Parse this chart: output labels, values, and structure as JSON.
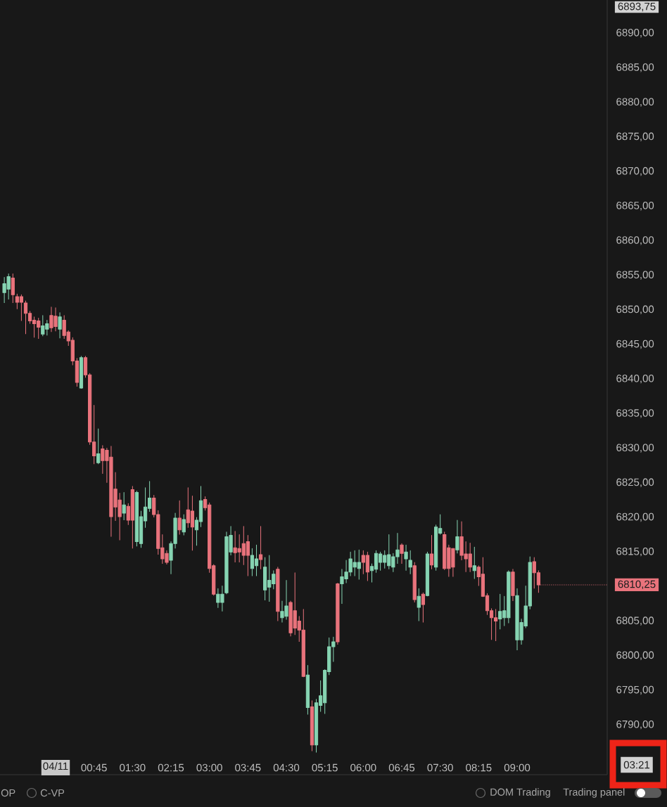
{
  "chart_data": {
    "type": "candlestick",
    "x": [
      -1,
      -0.917,
      -0.833,
      -0.75,
      -0.667,
      -0.583,
      -0.5,
      -0.417,
      -0.333,
      -0.25,
      -0.167,
      -0.083,
      0,
      0.083,
      0.167,
      0.25,
      0.333,
      0.417,
      0.5,
      0.583,
      0.667,
      0.75,
      0.833,
      0.917,
      1,
      1.083,
      1.167,
      1.25,
      1.333,
      1.417,
      1.5,
      1.583,
      1.667,
      1.75,
      1.833,
      1.917,
      2,
      2.083,
      2.167,
      2.25,
      2.333,
      2.417,
      2.5,
      2.583,
      2.667,
      2.75,
      2.833,
      2.917,
      3,
      3.083,
      3.167,
      3.25,
      3.333,
      3.417,
      3.5,
      3.583,
      3.667,
      3.75,
      3.833,
      3.917,
      4,
      4.083,
      4.167,
      4.25,
      4.333,
      4.417,
      4.5,
      4.583,
      4.667,
      4.75,
      4.833,
      4.917,
      5,
      5.083,
      5.167,
      5.25,
      5.333,
      5.417,
      5.5,
      5.583,
      5.667,
      5.75,
      5.833,
      5.917,
      6,
      6.083,
      6.167,
      6.25,
      6.333,
      6.417,
      6.5,
      6.583,
      6.667,
      6.75,
      6.833,
      6.917,
      7,
      7.083,
      7.167,
      7.25,
      7.333,
      7.417,
      7.5,
      7.583,
      7.667,
      7.75,
      7.833,
      7.917,
      8,
      8.083,
      8.167,
      8.25,
      8.333,
      8.417,
      8.5,
      8.583,
      8.667,
      8.75,
      8.833,
      8.917,
      9,
      9.083,
      9.167,
      9.25,
      9.333,
      9.417
    ],
    "ohlc": [
      [
        6852.5,
        6854.7,
        6851.0,
        6853.8
      ],
      [
        6853.0,
        6855.2,
        6851.5,
        6854.8
      ],
      [
        6854.6,
        6855.2,
        6851.0,
        6852.2
      ],
      [
        6851.9,
        6852.3,
        6850.1,
        6851.1
      ],
      [
        6851.9,
        6852.2,
        6848.4,
        6851.1
      ],
      [
        6851.0,
        6851.3,
        6846.5,
        6849.5
      ],
      [
        6849.5,
        6849.8,
        6848.0,
        6848.4
      ],
      [
        6848.5,
        6849.0,
        6846.0,
        6848.0
      ],
      [
        6848.4,
        6848.8,
        6845.8,
        6847.5
      ],
      [
        6846.5,
        6849.2,
        6846.2,
        6847.7
      ],
      [
        6847.2,
        6848.5,
        6846.3,
        6848.0
      ],
      [
        6849.2,
        6850.4,
        6846.8,
        6847.4
      ],
      [
        6849.1,
        6850.3,
        6846.9,
        6847.6
      ],
      [
        6847.2,
        6849.6,
        6845.9,
        6849.0
      ],
      [
        6848.5,
        6849.2,
        6845.8,
        6846.3
      ],
      [
        6846.8,
        6847.0,
        6844.8,
        6845.5
      ],
      [
        6845.6,
        6846.0,
        6842.0,
        6842.6
      ],
      [
        6842.6,
        6843.0,
        6838.9,
        6839.5
      ],
      [
        6838.7,
        6843.3,
        6838.6,
        6843.1
      ],
      [
        6843.1,
        6843.3,
        6840.2,
        6840.6
      ],
      [
        6840.6,
        6840.8,
        6830.5,
        6830.9
      ],
      [
        6830.9,
        6836.2,
        6827.7,
        6828.9
      ],
      [
        6827.9,
        6832.8,
        6827.7,
        6829.2
      ],
      [
        6829.9,
        6830.4,
        6826.3,
        6828.2
      ],
      [
        6829.7,
        6830.0,
        6825.0,
        6828.2
      ],
      [
        6828.7,
        6830.3,
        6817.2,
        6820.1
      ],
      [
        6824.1,
        6826.5,
        6819.5,
        6821.5
      ],
      [
        6822.5,
        6823.5,
        6816.7,
        6820.1
      ],
      [
        6820.6,
        6823.6,
        6819.6,
        6821.8
      ],
      [
        6821.6,
        6822.0,
        6818.9,
        6819.6
      ],
      [
        6824.0,
        6824.5,
        6815.5,
        6819.6
      ],
      [
        6816.5,
        6823.8,
        6815.8,
        6823.6
      ],
      [
        6816.2,
        6820.9,
        6815.6,
        6820.1
      ],
      [
        6819.5,
        6824.3,
        6818.5,
        6821.5
      ],
      [
        6821.3,
        6825.2,
        6820.8,
        6822.8
      ],
      [
        6822.8,
        6823.2,
        6820.0,
        6820.4
      ],
      [
        6820.4,
        6821.0,
        6814.6,
        6815.5
      ],
      [
        6815.6,
        6817.5,
        6813.3,
        6814.0
      ],
      [
        6814.8,
        6815.2,
        6813.2,
        6813.5
      ],
      [
        6813.8,
        6816.5,
        6811.8,
        6816.2
      ],
      [
        6816.2,
        6820.6,
        6815.5,
        6819.9
      ],
      [
        6819.9,
        6822.4,
        6817.5,
        6818.2
      ],
      [
        6817.9,
        6820.4,
        6817.4,
        6819.7
      ],
      [
        6821.1,
        6824.3,
        6818.5,
        6819.2
      ],
      [
        6820.9,
        6823.1,
        6815.2,
        6818.6
      ],
      [
        6818.2,
        6820.0,
        6815.9,
        6819.6
      ],
      [
        6819.4,
        6824.5,
        6818.6,
        6822.4
      ],
      [
        6822.6,
        6823.0,
        6821.0,
        6821.4
      ],
      [
        6821.8,
        6822.1,
        6812.0,
        6812.6
      ],
      [
        6813.0,
        6813.2,
        6808.7,
        6808.9
      ],
      [
        6807.7,
        6809.7,
        6806.9,
        6808.9
      ],
      [
        6807.7,
        6810.1,
        6806.4,
        6808.9
      ],
      [
        6809.1,
        6817.9,
        6808.9,
        6817.2
      ],
      [
        6815.0,
        6818.7,
        6814.5,
        6817.4
      ],
      [
        6815.6,
        6818.0,
        6813.5,
        6814.9
      ],
      [
        6815.5,
        6817.5,
        6813.5,
        6815.0
      ],
      [
        6816.2,
        6818.7,
        6813.1,
        6814.5
      ],
      [
        6816.5,
        6817.4,
        6811.5,
        6814.5
      ],
      [
        6812.6,
        6815.5,
        6811.5,
        6814.5
      ],
      [
        6813.0,
        6816.0,
        6811.5,
        6814.0
      ],
      [
        6814.6,
        6818.7,
        6812.5,
        6813.9
      ],
      [
        6809.5,
        6814.2,
        6808.0,
        6812.8
      ],
      [
        6809.9,
        6814.5,
        6807.8,
        6810.9
      ],
      [
        6810.4,
        6812.3,
        6809.6,
        6811.8
      ],
      [
        6812.5,
        6812.8,
        6805.0,
        6806.4
      ],
      [
        6805.5,
        6807.9,
        6804.8,
        6806.4
      ],
      [
        6805.7,
        6810.9,
        6805.2,
        6807.2
      ],
      [
        6807.7,
        6807.9,
        6802.8,
        6803.3
      ],
      [
        6806.5,
        6812.0,
        6803.0,
        6804.0
      ],
      [
        6805.0,
        6805.7,
        6802.0,
        6803.7
      ],
      [
        6803.7,
        6806.7,
        6796.9,
        6797.0
      ],
      [
        6792.5,
        6798.6,
        6791.5,
        6797.2
      ],
      [
        6792.6,
        6793.5,
        6786.2,
        6787.1
      ],
      [
        6787.1,
        6793.7,
        6786.0,
        6793.2
      ],
      [
        6792.8,
        6796.4,
        6791.9,
        6794.2
      ],
      [
        6793.2,
        6798.0,
        6791.6,
        6797.9
      ],
      [
        6797.7,
        6802.6,
        6797.2,
        6801.3
      ],
      [
        6801.3,
        6802.7,
        6799.1,
        6802.0
      ],
      [
        6810.4,
        6810.5,
        6801.6,
        6802.0
      ],
      [
        6810.4,
        6812.5,
        6807.5,
        6811.4
      ],
      [
        6811.1,
        6813.8,
        6810.5,
        6812.1
      ],
      [
        6812.1,
        6815.0,
        6811.5,
        6814.0
      ],
      [
        6812.8,
        6815.2,
        6811.5,
        6813.5
      ],
      [
        6812.6,
        6815.3,
        6811.0,
        6813.5
      ],
      [
        6814.5,
        6815.2,
        6811.8,
        6813.5
      ],
      [
        6814.5,
        6815.0,
        6810.8,
        6812.1
      ],
      [
        6812.3,
        6813.3,
        6810.6,
        6812.9
      ],
      [
        6812.5,
        6815.2,
        6812.0,
        6814.8
      ],
      [
        6813.5,
        6815.0,
        6812.3,
        6814.7
      ],
      [
        6813.5,
        6815.2,
        6812.6,
        6814.5
      ],
      [
        6813.0,
        6817.5,
        6812.5,
        6814.6
      ],
      [
        6812.8,
        6814.8,
        6812.1,
        6814.3
      ],
      [
        6814.3,
        6817.7,
        6813.3,
        6815.3
      ],
      [
        6816.0,
        6816.2,
        6813.3,
        6814.8
      ],
      [
        6814.0,
        6816.0,
        6812.3,
        6815.0
      ],
      [
        6812.8,
        6815.2,
        6811.8,
        6813.8
      ],
      [
        6813.0,
        6813.5,
        6807.7,
        6808.1
      ],
      [
        6807.0,
        6809.7,
        6805.0,
        6808.6
      ],
      [
        6808.9,
        6809.1,
        6804.8,
        6807.4
      ],
      [
        6808.7,
        6815.0,
        6808.6,
        6814.7
      ],
      [
        6814.7,
        6817.4,
        6812.5,
        6813.1
      ],
      [
        6812.8,
        6818.9,
        6812.3,
        6818.6
      ],
      [
        6817.7,
        6820.4,
        6817.5,
        6818.4
      ],
      [
        6817.5,
        6817.9,
        6812.4,
        6812.6
      ],
      [
        6815.6,
        6816.0,
        6811.4,
        6812.6
      ],
      [
        6815.5,
        6815.5,
        6811.4,
        6812.8
      ],
      [
        6815.3,
        6819.6,
        6814.8,
        6817.2
      ],
      [
        6817.2,
        6819.4,
        6813.8,
        6814.5
      ],
      [
        6814.7,
        6816.5,
        6812.1,
        6814.0
      ],
      [
        6814.7,
        6816.3,
        6812.1,
        6812.8
      ],
      [
        6812.3,
        6815.7,
        6811.1,
        6813.0
      ],
      [
        6812.8,
        6813.0,
        6810.1,
        6811.4
      ],
      [
        6811.8,
        6814.2,
        6808.5,
        6808.6
      ],
      [
        6808.7,
        6809.0,
        6805.9,
        6806.5
      ],
      [
        6806.5,
        6806.8,
        6802.3,
        6805.5
      ],
      [
        6805.5,
        6806.7,
        6802.1,
        6805.0
      ],
      [
        6805.3,
        6808.9,
        6803.8,
        6806.4
      ],
      [
        6805.5,
        6808.6,
        6804.3,
        6806.5
      ],
      [
        6805.5,
        6812.3,
        6804.7,
        6812.1
      ],
      [
        6812.1,
        6812.5,
        6807.9,
        6808.7
      ],
      [
        6802.3,
        6809.7,
        6800.8,
        6808.7
      ],
      [
        6802.3,
        6805.3,
        6801.6,
        6804.8
      ],
      [
        6804.3,
        6810.1,
        6804.0,
        6807.2
      ],
      [
        6807.2,
        6814.3,
        6806.7,
        6813.5
      ],
      [
        6813.6,
        6814.2,
        6809.7,
        6812.0
      ],
      [
        6812.0,
        6812.3,
        6809.1,
        6810.25
      ]
    ],
    "colors": [
      "#86d4b2",
      "#86d4b2",
      "#e9737c",
      "#e9737c",
      "#e9737c",
      "#e9737c",
      "#e9737c",
      "#e9737c",
      "#e9737c",
      "#86d4b2",
      "#86d4b2",
      "#e9737c",
      "#e9737c",
      "#86d4b2",
      "#e9737c",
      "#e9737c",
      "#e9737c",
      "#e9737c",
      "#86d4b2",
      "#e9737c",
      "#e9737c",
      "#e9737c",
      "#86d4b2",
      "#e9737c",
      "#e9737c",
      "#e9737c",
      "#e9737c",
      "#e9737c",
      "#86d4b2",
      "#e9737c",
      "#e9737c",
      "#86d4b2",
      "#86d4b2",
      "#86d4b2",
      "#86d4b2",
      "#e9737c",
      "#e9737c",
      "#e9737c",
      "#e9737c",
      "#86d4b2",
      "#86d4b2",
      "#e9737c",
      "#86d4b2",
      "#e9737c",
      "#e9737c",
      "#86d4b2",
      "#86d4b2",
      "#e9737c",
      "#e9737c",
      "#e9737c",
      "#86d4b2",
      "#86d4b2",
      "#86d4b2",
      "#86d4b2",
      "#e9737c",
      "#e9737c",
      "#e9737c",
      "#e9737c",
      "#86d4b2",
      "#86d4b2",
      "#e9737c",
      "#86d4b2",
      "#86d4b2",
      "#86d4b2",
      "#e9737c",
      "#86d4b2",
      "#86d4b2",
      "#e9737c",
      "#e9737c",
      "#e9737c",
      "#e9737c",
      "#86d4b2",
      "#e9737c",
      "#86d4b2",
      "#86d4b2",
      "#86d4b2",
      "#86d4b2",
      "#86d4b2",
      "#e9737c",
      "#86d4b2",
      "#86d4b2",
      "#86d4b2",
      "#86d4b2",
      "#86d4b2",
      "#e9737c",
      "#e9737c",
      "#86d4b2",
      "#86d4b2",
      "#86d4b2",
      "#86d4b2",
      "#86d4b2",
      "#86d4b2",
      "#86d4b2",
      "#e9737c",
      "#86d4b2",
      "#86d4b2",
      "#e9737c",
      "#86d4b2",
      "#e9737c",
      "#86d4b2",
      "#e9737c",
      "#86d4b2",
      "#86d4b2",
      "#e9737c",
      "#e9737c",
      "#e9737c",
      "#86d4b2",
      "#e9737c",
      "#e9737c",
      "#e9737c",
      "#86d4b2",
      "#e9737c",
      "#e9737c",
      "#e9737c",
      "#e9737c",
      "#e9737c",
      "#86d4b2",
      "#86d4b2",
      "#86d4b2",
      "#e9737c",
      "#86d4b2",
      "#86d4b2",
      "#86d4b2",
      "#86d4b2",
      "#e9737c",
      "#e9737c"
    ],
    "xlim": [
      -1.084,
      10.756
    ],
    "ylim": [
      6782.8,
      6894.8
    ],
    "xticks": [
      {
        "value": 0,
        "label": "04/11"
      },
      {
        "value": 0.75,
        "label": "00:45"
      },
      {
        "value": 1.5,
        "label": "01:30"
      },
      {
        "value": 2.25,
        "label": "02:15"
      },
      {
        "value": 3,
        "label": "03:00"
      },
      {
        "value": 3.75,
        "label": "03:45"
      },
      {
        "value": 4.5,
        "label": "04:30"
      },
      {
        "value": 5.25,
        "label": "05:15"
      },
      {
        "value": 6,
        "label": "06:00"
      },
      {
        "value": 6.75,
        "label": "06:45"
      },
      {
        "value": 7.5,
        "label": "07:30"
      },
      {
        "value": 8.25,
        "label": "08:15"
      },
      {
        "value": 9,
        "label": "09:00"
      }
    ],
    "yticks": [
      {
        "value": 6790,
        "label": "6790,00"
      },
      {
        "value": 6795,
        "label": "6795,00"
      },
      {
        "value": 6800,
        "label": "6800,00"
      },
      {
        "value": 6805,
        "label": "6805,00"
      },
      {
        "value": 6815,
        "label": "6815,00"
      },
      {
        "value": 6820,
        "label": "6820,00"
      },
      {
        "value": 6825,
        "label": "6825,00"
      },
      {
        "value": 6830,
        "label": "6830,00"
      },
      {
        "value": 6835,
        "label": "6835,00"
      },
      {
        "value": 6840,
        "label": "6840,00"
      },
      {
        "value": 6845,
        "label": "6845,00"
      },
      {
        "value": 6850,
        "label": "6850,00"
      },
      {
        "value": 6855,
        "label": "6855,00"
      },
      {
        "value": 6860,
        "label": "6860,00"
      },
      {
        "value": 6865,
        "label": "6865,00"
      },
      {
        "value": 6870,
        "label": "6870,00"
      },
      {
        "value": 6875,
        "label": "6875,00"
      },
      {
        "value": 6880,
        "label": "6880,00"
      },
      {
        "value": 6885,
        "label": "6885,00"
      },
      {
        "value": 6890,
        "label": "6890,00"
      }
    ],
    "ref_lines": [
      {
        "axis": "y",
        "value": 6810.25,
        "label": "6810,25",
        "color": "#e9737c",
        "line_style": "dotted"
      }
    ],
    "annotations": [
      "6893,75",
      "03:21",
      "OP",
      "C-VP",
      "DOM Trading",
      "Trading panel"
    ]
  }
}
